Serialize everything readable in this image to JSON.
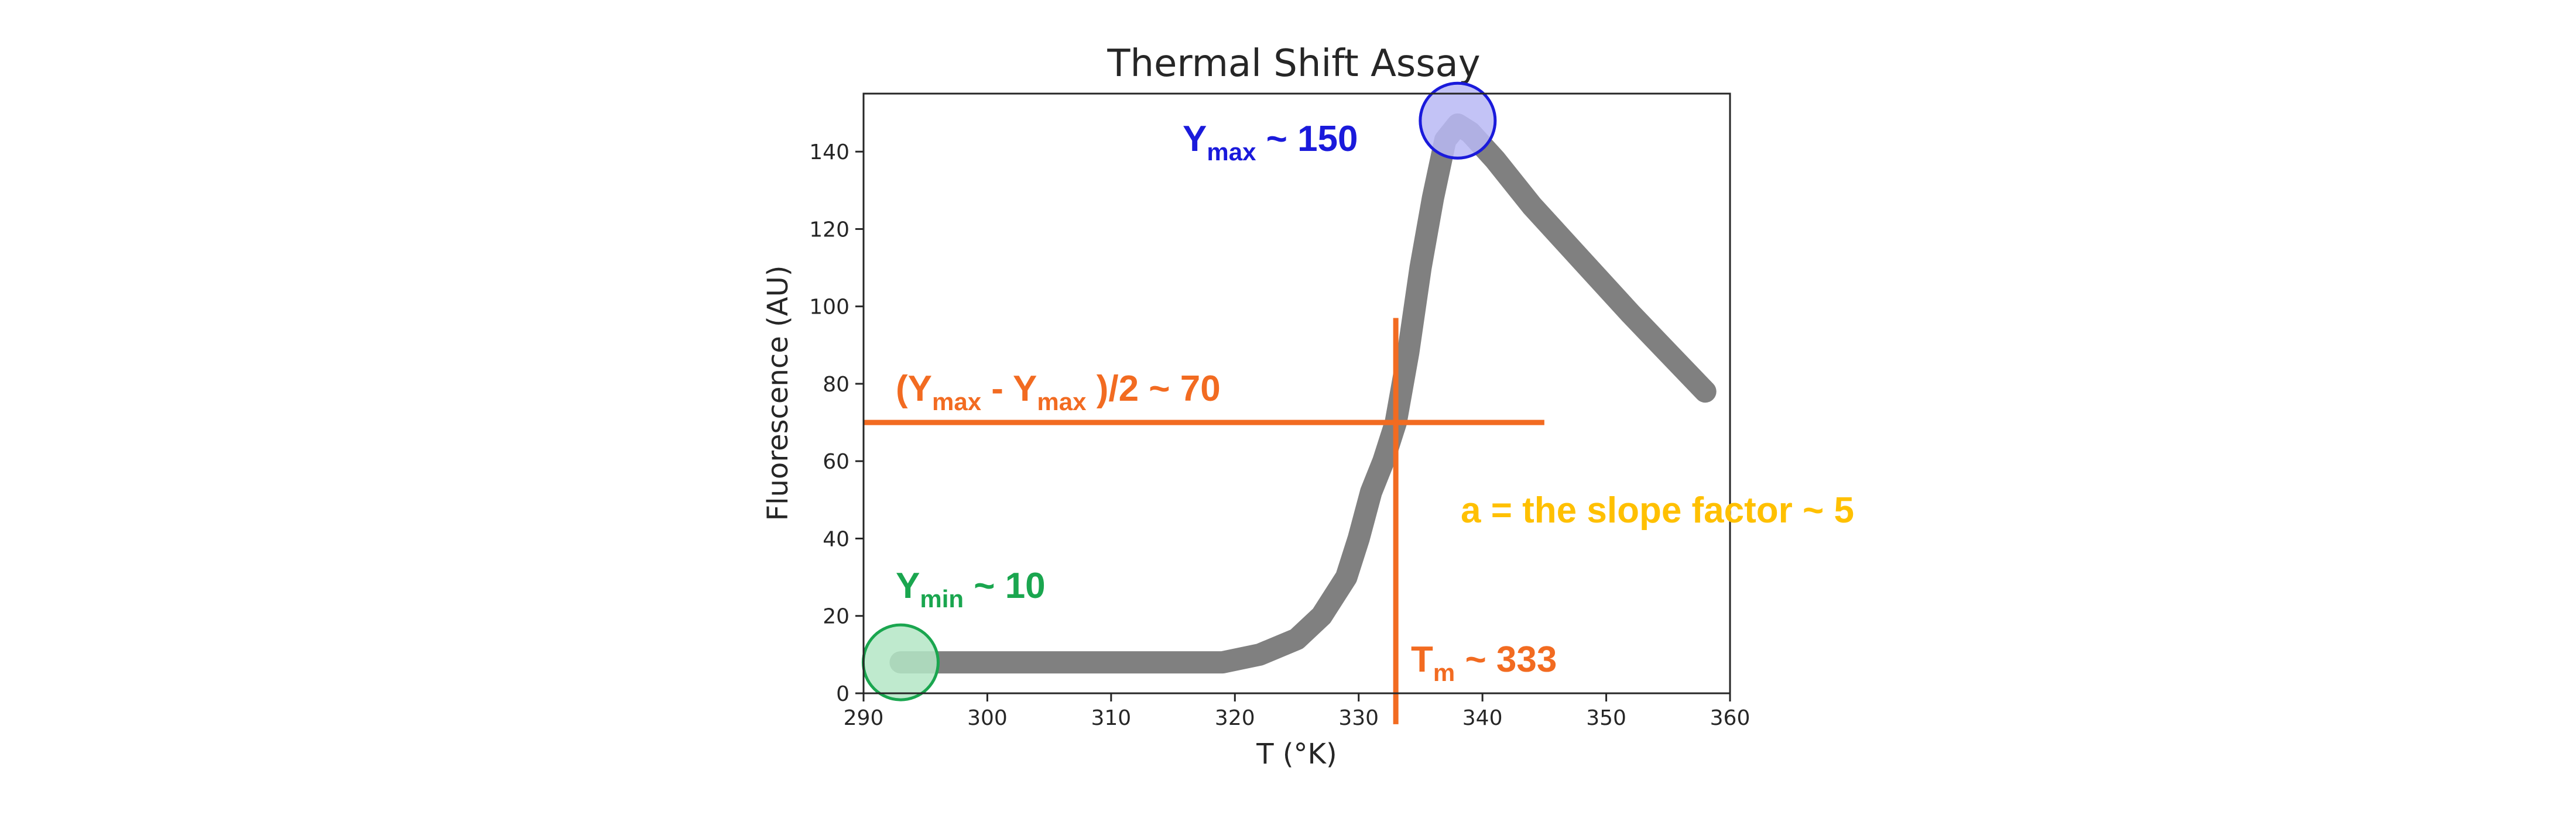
{
  "chart_data": {
    "type": "line",
    "title": "Thermal Shift Assay",
    "xlabel": "T (°K)",
    "ylabel": "Fluorescence (AU)",
    "xlim": [
      290,
      360
    ],
    "ylim": [
      0,
      155
    ],
    "x_ticks": [
      290,
      300,
      310,
      320,
      330,
      340,
      350,
      360
    ],
    "y_ticks": [
      0,
      20,
      40,
      60,
      80,
      100,
      120,
      140
    ],
    "grid": false,
    "legend": "none",
    "series": [
      {
        "color": "#808080",
        "x": [
          293,
          296,
          300,
          305,
          310,
          315,
          319,
          322,
          325,
          327,
          329,
          330,
          331,
          332,
          333,
          334,
          335,
          336,
          337,
          338,
          339,
          341,
          344,
          348,
          352,
          355,
          358
        ],
        "y": [
          8,
          8,
          8,
          8,
          8,
          8,
          8,
          10,
          14,
          20,
          30,
          40,
          52,
          60,
          70,
          88,
          110,
          128,
          143,
          147,
          145,
          138,
          126,
          112,
          98,
          88,
          78
        ]
      }
    ],
    "reference_lines": [
      {
        "orientation": "horizontal",
        "value": 70,
        "from": 290,
        "to": 345,
        "color": "#f26b21"
      },
      {
        "orientation": "vertical",
        "value": 333,
        "from": -8,
        "to": 97,
        "color": "#f26b21"
      }
    ],
    "highlight_points": [
      {
        "x": 338,
        "y": 148,
        "color": "#1a1adb",
        "fill": "#b9b9f5"
      },
      {
        "x": 293,
        "y": 8,
        "color": "#1aa64f",
        "fill": "#b4e6c6"
      }
    ],
    "annotations": [
      {
        "id": "ymax",
        "base": "Y",
        "sub": "max",
        "text": " ~ 150",
        "color": "#1a1adb"
      },
      {
        "id": "half",
        "p1": "(Y",
        "sub1": "max",
        "p2": " - Y",
        "sub2": "max",
        "p3": " )/2 ~ 70",
        "color": "#f26b21"
      },
      {
        "id": "ymin",
        "base": "Y",
        "sub": "min",
        "text": " ~ 10",
        "color": "#1aa64f"
      },
      {
        "id": "tm",
        "base": "T",
        "sub": "m",
        "text": " ~ 333",
        "color": "#f26b21"
      },
      {
        "id": "slope",
        "text": "a = the slope factor ~ 5",
        "color": "#ffc000"
      }
    ]
  }
}
